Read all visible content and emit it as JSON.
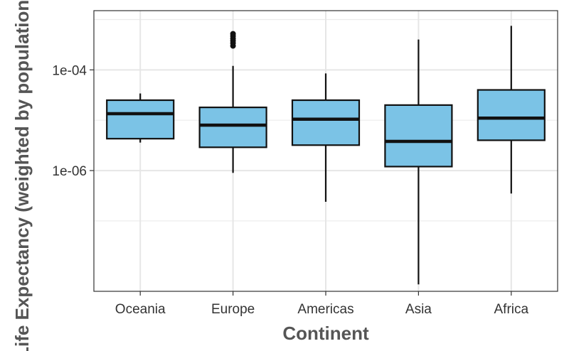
{
  "chart_data": {
    "type": "boxplot",
    "title": "",
    "xlabel": "Continent",
    "ylabel": "Life Expectancy (weighted by population)",
    "y_scale": "log10",
    "ylim": [
      4e-09,
      0.0015
    ],
    "y_ticks": [
      {
        "value": 1e-06,
        "label": "1e-06"
      },
      {
        "value": 0.0001,
        "label": "1e-04"
      }
    ],
    "y_minor_grid": [
      1e-07,
      1e-05,
      0.001
    ],
    "grid": true,
    "legend": "none",
    "fill_color": "#7bc3e6",
    "stroke_color": "#111111",
    "categories": [
      "Oceania",
      "Europe",
      "Americas",
      "Asia",
      "Africa"
    ],
    "boxes": [
      {
        "category": "Oceania",
        "whisker_low": 3.6e-06,
        "q1": 4.3e-06,
        "median": 1.35e-05,
        "q3": 2.5e-05,
        "whisker_high": 3.4e-05,
        "outliers": []
      },
      {
        "category": "Europe",
        "whisker_low": 9e-07,
        "q1": 2.9e-06,
        "median": 8e-06,
        "q3": 1.8e-05,
        "whisker_high": 0.00012,
        "outliers": [
          0.0003,
          0.00034,
          0.00038,
          0.00042,
          0.00047,
          0.00052
        ]
      },
      {
        "category": "Americas",
        "whisker_low": 2.4e-07,
        "q1": 3.2e-06,
        "median": 1.05e-05,
        "q3": 2.5e-05,
        "whisker_high": 8.5e-05,
        "outliers": []
      },
      {
        "category": "Asia",
        "whisker_low": 5.5e-09,
        "q1": 1.2e-06,
        "median": 3.8e-06,
        "q3": 2e-05,
        "whisker_high": 0.0004,
        "outliers": []
      },
      {
        "category": "Africa",
        "whisker_low": 3.5e-07,
        "q1": 4e-06,
        "median": 1.1e-05,
        "q3": 4e-05,
        "whisker_high": 0.00075,
        "outliers": []
      }
    ]
  }
}
